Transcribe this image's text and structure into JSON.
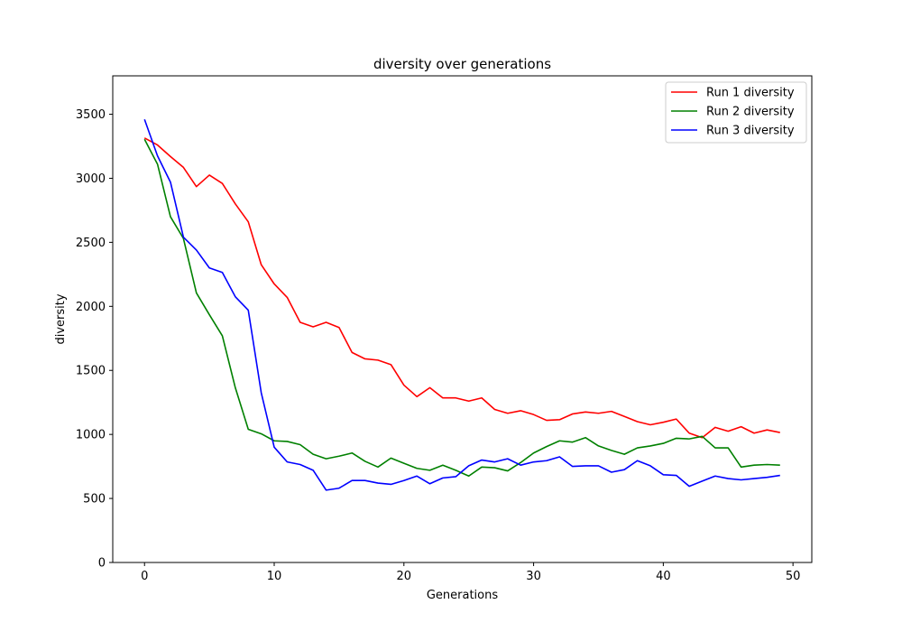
{
  "chart_data": {
    "type": "line",
    "title": "diversity over generations",
    "xlabel": "Generations",
    "ylabel": "diversity",
    "xlim": [
      -2.45,
      51.45
    ],
    "ylim": [
      0,
      3800
    ],
    "xticks": [
      0,
      10,
      20,
      30,
      40,
      50
    ],
    "yticks": [
      0,
      500,
      1000,
      1500,
      2000,
      2500,
      3000,
      3500
    ],
    "grid": false,
    "legend_position": "top-right",
    "x": [
      0,
      1,
      2,
      3,
      4,
      5,
      6,
      7,
      8,
      9,
      10,
      11,
      12,
      13,
      14,
      15,
      16,
      17,
      18,
      19,
      20,
      21,
      22,
      23,
      24,
      25,
      26,
      27,
      28,
      29,
      30,
      31,
      32,
      33,
      34,
      35,
      36,
      37,
      38,
      39,
      40,
      41,
      42,
      43,
      44,
      45,
      46,
      47,
      48,
      49
    ],
    "series": [
      {
        "name": "Run 1 diversity",
        "color": "#ff0000",
        "values": [
          3315,
          3260,
          3170,
          3085,
          2935,
          3025,
          2960,
          2800,
          2660,
          2325,
          2175,
          2070,
          1875,
          1840,
          1875,
          1835,
          1640,
          1590,
          1580,
          1545,
          1385,
          1295,
          1365,
          1285,
          1285,
          1260,
          1285,
          1195,
          1165,
          1185,
          1155,
          1110,
          1115,
          1160,
          1175,
          1165,
          1180,
          1140,
          1100,
          1075,
          1095,
          1120,
          1010,
          975,
          1055,
          1025,
          1060,
          1010,
          1035,
          1015
        ]
      },
      {
        "name": "Run 2 diversity",
        "color": "#008000",
        "values": [
          3305,
          3110,
          2700,
          2530,
          2105,
          1935,
          1770,
          1365,
          1040,
          1005,
          950,
          945,
          920,
          845,
          810,
          830,
          855,
          790,
          745,
          815,
          775,
          735,
          720,
          760,
          720,
          675,
          745,
          740,
          715,
          780,
          855,
          905,
          950,
          940,
          975,
          910,
          875,
          845,
          895,
          910,
          930,
          970,
          965,
          985,
          895,
          895,
          745,
          760,
          765,
          760
        ]
      },
      {
        "name": "Run 3 diversity",
        "color": "#0000ff",
        "values": [
          3460,
          3175,
          2970,
          2540,
          2440,
          2300,
          2265,
          2075,
          1970,
          1325,
          900,
          785,
          765,
          720,
          565,
          580,
          640,
          640,
          620,
          610,
          640,
          675,
          615,
          660,
          670,
          755,
          800,
          785,
          810,
          760,
          785,
          795,
          825,
          750,
          755,
          755,
          705,
          725,
          795,
          755,
          685,
          680,
          595,
          635,
          675,
          655,
          645,
          655,
          665,
          680
        ]
      }
    ]
  }
}
